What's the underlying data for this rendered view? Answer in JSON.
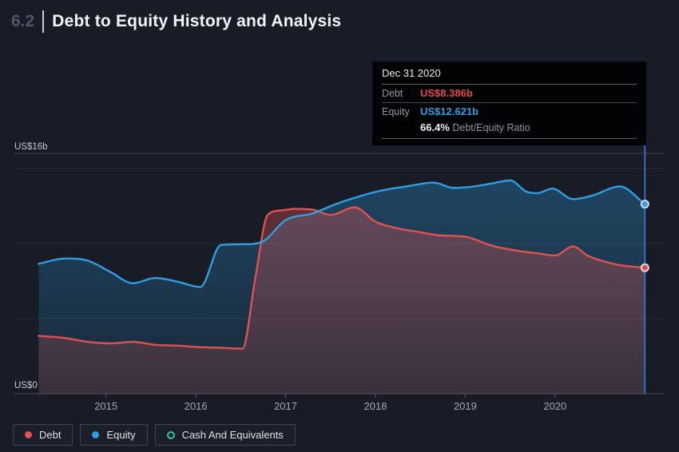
{
  "header": {
    "section": "6.2",
    "title": "Debt to Equity History and Analysis"
  },
  "tooltip": {
    "date": "Dec 31 2020",
    "debt_label": "Debt",
    "debt_value": "US$8.386b",
    "debt_color": "#e7494c",
    "equity_label": "Equity",
    "equity_value": "US$12.621b",
    "equity_color": "#2f9ee3",
    "ratio_value": "66.4%",
    "ratio_label": "Debt/Equity Ratio"
  },
  "legend": {
    "items": [
      {
        "label": "Debt",
        "color": "#e25353",
        "filled": true
      },
      {
        "label": "Equity",
        "color": "#2f9ee3",
        "filled": true
      },
      {
        "label": "Cash And Equivalents",
        "color": "#2cc5b1",
        "filled": false
      }
    ]
  },
  "chart_data": {
    "type": "area",
    "title": "Debt to Equity History and Analysis",
    "xlim": [
      2013.98,
      2021.22
    ],
    "ylim": [
      0,
      16
    ],
    "xticks": [
      "2015",
      "2016",
      "2017",
      "2018",
      "2019",
      "2020"
    ],
    "ylabel_top": "US$16b",
    "ylabel_bottom": "US$0",
    "gridline_values": [
      15,
      10,
      5
    ],
    "grid_color_max": "rgba(255,255,255,0.16)",
    "grid_color": "rgba(255,255,255,0.08)",
    "axis_color": "#434a57",
    "tick_color": "#596170",
    "crosshair": {
      "x": 2021.0,
      "date": "Dec 31 2020",
      "color": "#3b7ef0"
    },
    "marker_stroke": "#d5dbe2",
    "series": [
      {
        "name": "Equity",
        "color": "#2f9ee3",
        "points": [
          [
            2014.25,
            8.65
          ],
          [
            2014.55,
            9.0
          ],
          [
            2014.8,
            8.85
          ],
          [
            2015.05,
            8.1
          ],
          [
            2015.3,
            7.35
          ],
          [
            2015.55,
            7.7
          ],
          [
            2015.8,
            7.45
          ],
          [
            2016.05,
            7.1
          ],
          [
            2016.28,
            9.9
          ],
          [
            2016.55,
            9.95
          ],
          [
            2016.75,
            10.15
          ],
          [
            2017.0,
            11.55
          ],
          [
            2017.3,
            12.0
          ],
          [
            2017.55,
            12.6
          ],
          [
            2017.8,
            13.1
          ],
          [
            2018.05,
            13.5
          ],
          [
            2018.35,
            13.8
          ],
          [
            2018.65,
            14.05
          ],
          [
            2018.87,
            13.7
          ],
          [
            2019.1,
            13.8
          ],
          [
            2019.3,
            14.0
          ],
          [
            2019.5,
            14.2
          ],
          [
            2019.68,
            13.45
          ],
          [
            2019.8,
            13.35
          ],
          [
            2019.97,
            13.65
          ],
          [
            2020.2,
            12.95
          ],
          [
            2020.42,
            13.2
          ],
          [
            2020.72,
            13.8
          ],
          [
            2021.0,
            12.621
          ]
        ]
      },
      {
        "name": "Debt",
        "color": "#e05252",
        "points": [
          [
            2014.25,
            3.85
          ],
          [
            2014.55,
            3.7
          ],
          [
            2014.8,
            3.45
          ],
          [
            2015.05,
            3.35
          ],
          [
            2015.3,
            3.45
          ],
          [
            2015.55,
            3.25
          ],
          [
            2015.8,
            3.2
          ],
          [
            2016.05,
            3.1
          ],
          [
            2016.3,
            3.05
          ],
          [
            2016.52,
            3.0
          ],
          [
            2016.66,
            7.6
          ],
          [
            2016.8,
            11.9
          ],
          [
            2016.95,
            12.2
          ],
          [
            2017.1,
            12.3
          ],
          [
            2017.3,
            12.25
          ],
          [
            2017.5,
            11.9
          ],
          [
            2017.77,
            12.4
          ],
          [
            2018.0,
            11.45
          ],
          [
            2018.25,
            11.0
          ],
          [
            2018.45,
            10.8
          ],
          [
            2018.7,
            10.55
          ],
          [
            2019.0,
            10.45
          ],
          [
            2019.3,
            9.85
          ],
          [
            2019.6,
            9.5
          ],
          [
            2019.8,
            9.35
          ],
          [
            2020.0,
            9.2
          ],
          [
            2020.2,
            9.8
          ],
          [
            2020.36,
            9.2
          ],
          [
            2020.52,
            8.85
          ],
          [
            2020.73,
            8.55
          ],
          [
            2021.0,
            8.386
          ]
        ]
      }
    ],
    "hidden_series": [
      "Cash And Equivalents"
    ]
  }
}
